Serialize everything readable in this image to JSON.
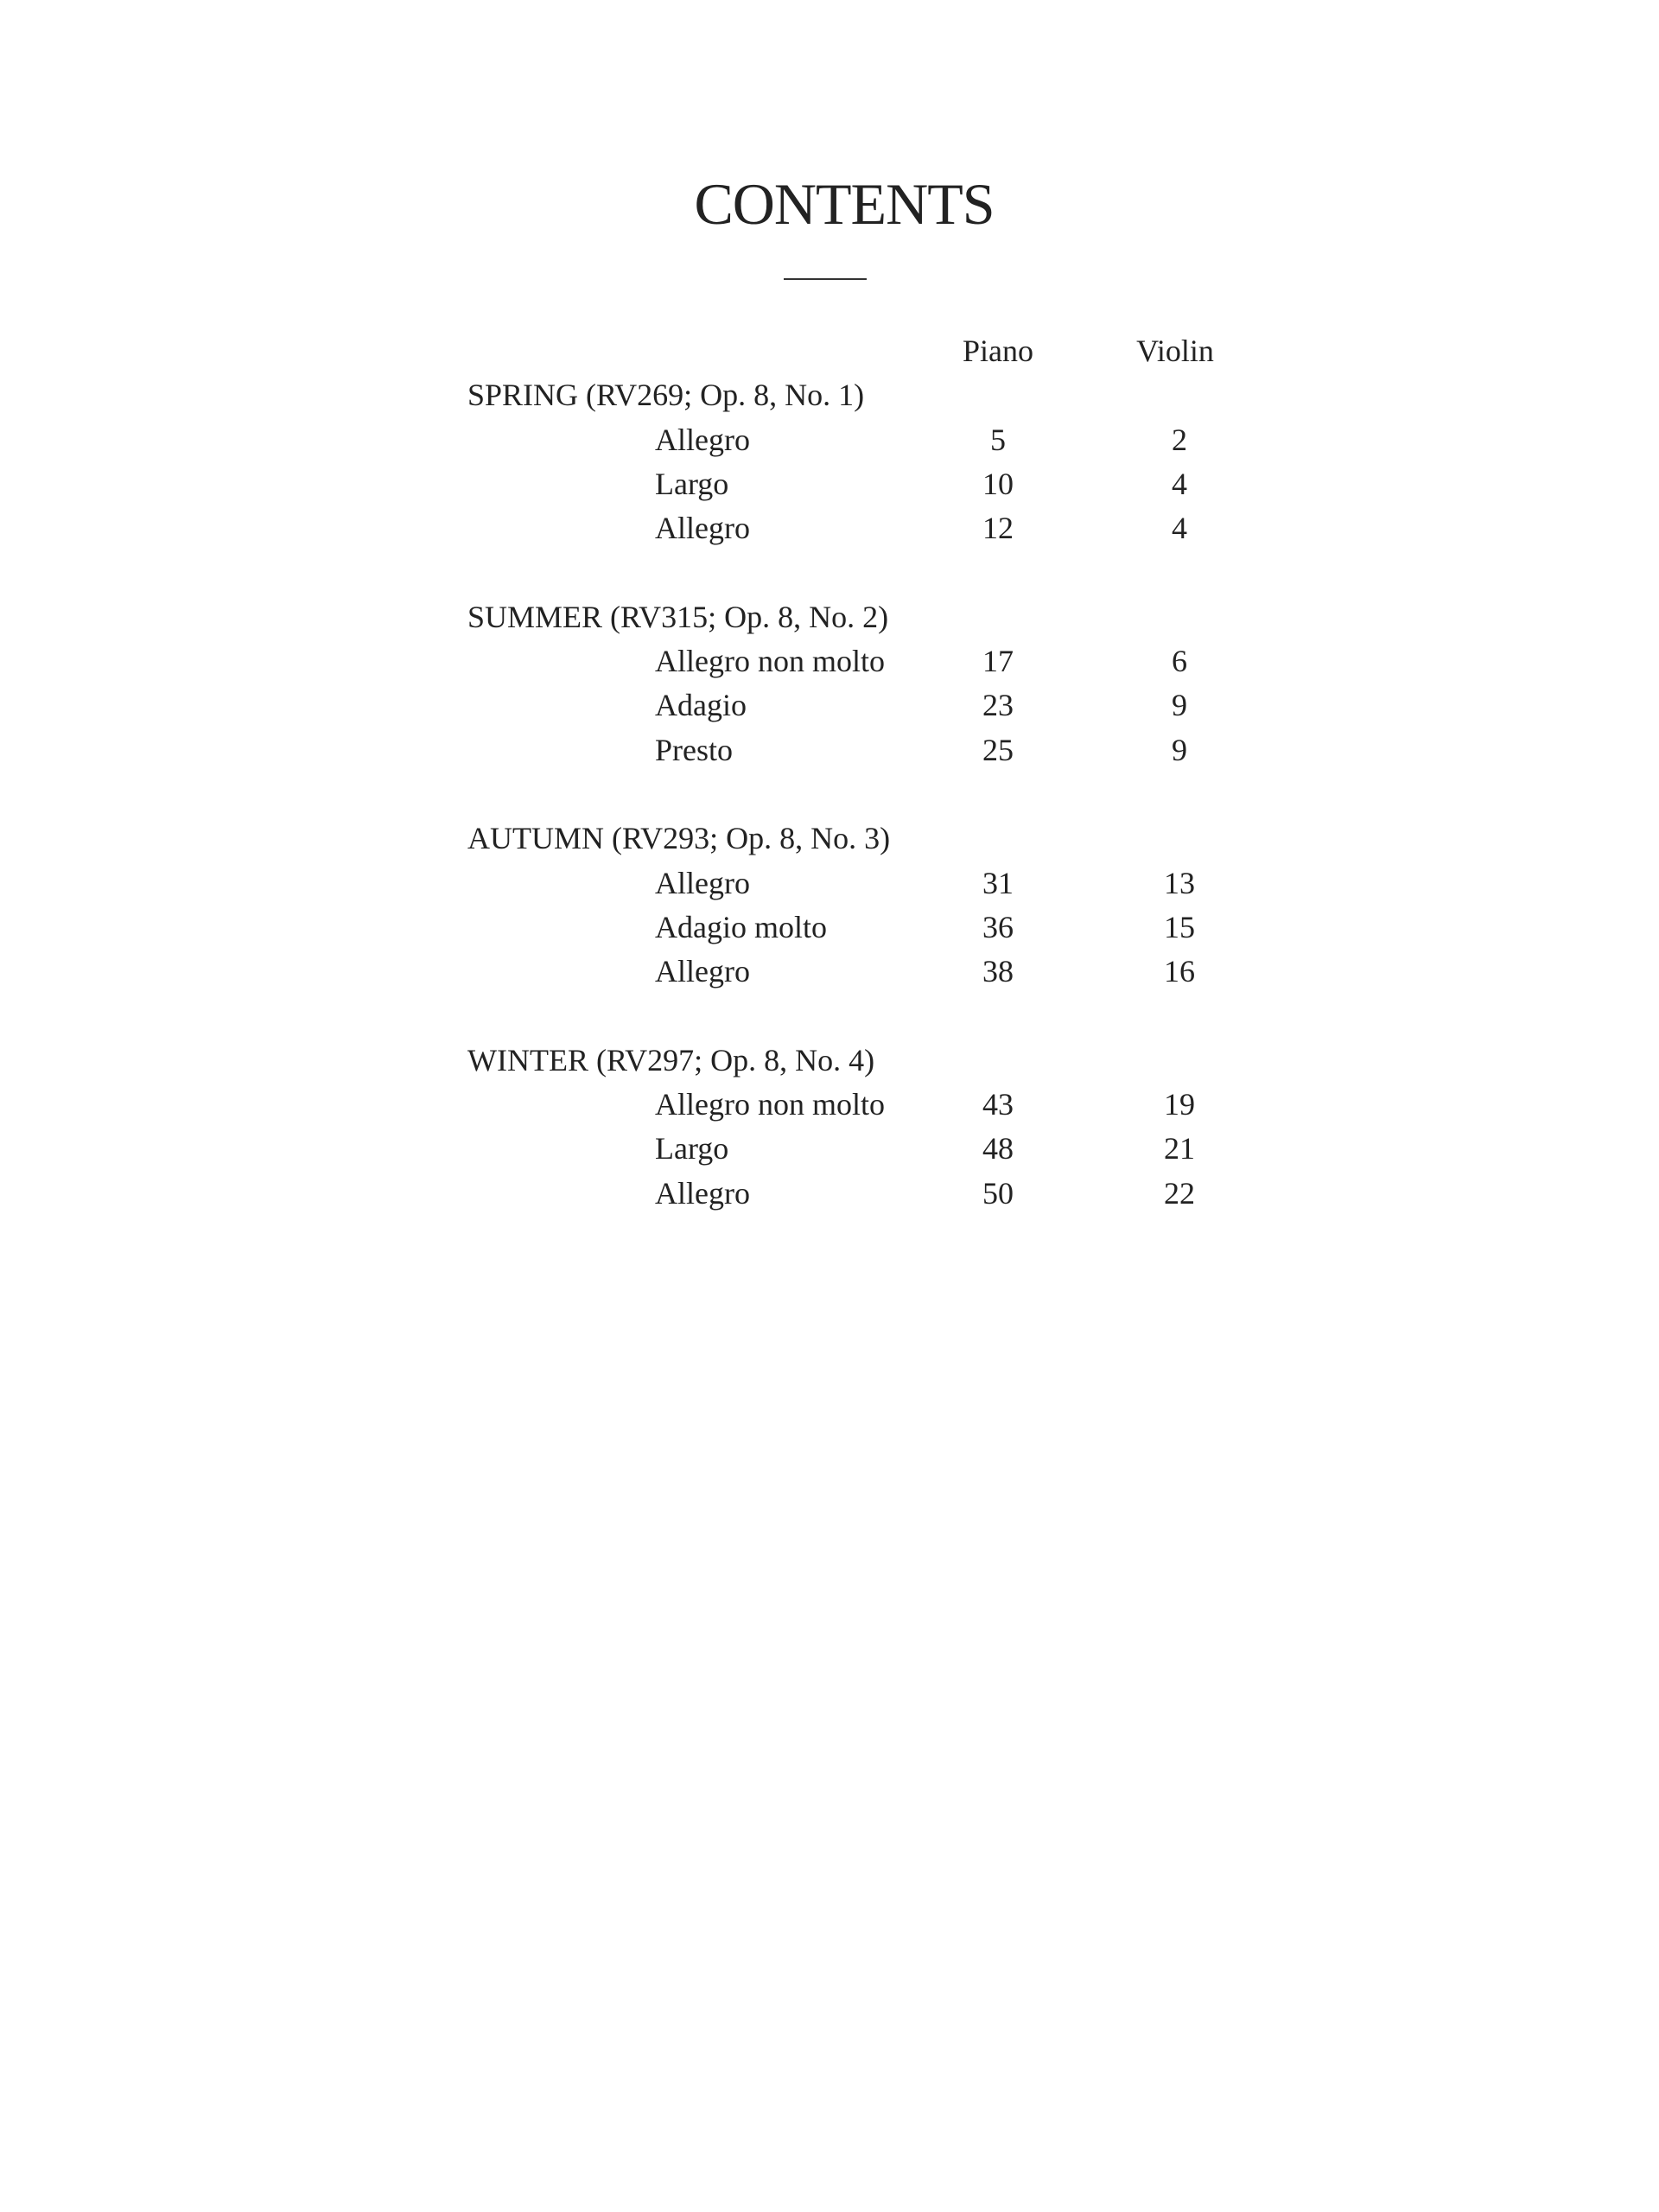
{
  "title": "CONTENTS",
  "columns": {
    "piano": "Piano",
    "violin": "Violin"
  },
  "sections": [
    {
      "heading": "SPRING (RV269; Op. 8, No. 1)",
      "movements": [
        {
          "name": "Allegro",
          "piano": "5",
          "violin": "2"
        },
        {
          "name": "Largo",
          "piano": "10",
          "violin": "4"
        },
        {
          "name": "Allegro",
          "piano": "12",
          "violin": "4"
        }
      ]
    },
    {
      "heading": "SUMMER (RV315; Op. 8, No. 2)",
      "movements": [
        {
          "name": "Allegro non molto",
          "piano": "17",
          "violin": "6"
        },
        {
          "name": "Adagio",
          "piano": "23",
          "violin": "9"
        },
        {
          "name": "Presto",
          "piano": "25",
          "violin": "9"
        }
      ]
    },
    {
      "heading": "AUTUMN (RV293; Op. 8, No. 3)",
      "movements": [
        {
          "name": "Allegro",
          "piano": "31",
          "violin": "13"
        },
        {
          "name": "Adagio molto",
          "piano": "36",
          "violin": "15"
        },
        {
          "name": "Allegro",
          "piano": "38",
          "violin": "16"
        }
      ]
    },
    {
      "heading": "WINTER (RV297; Op. 8, No. 4)",
      "movements": [
        {
          "name": "Allegro non molto",
          "piano": "43",
          "violin": "19"
        },
        {
          "name": "Largo",
          "piano": "48",
          "violin": "21"
        },
        {
          "name": "Allegro",
          "piano": "50",
          "violin": "22"
        }
      ]
    }
  ]
}
